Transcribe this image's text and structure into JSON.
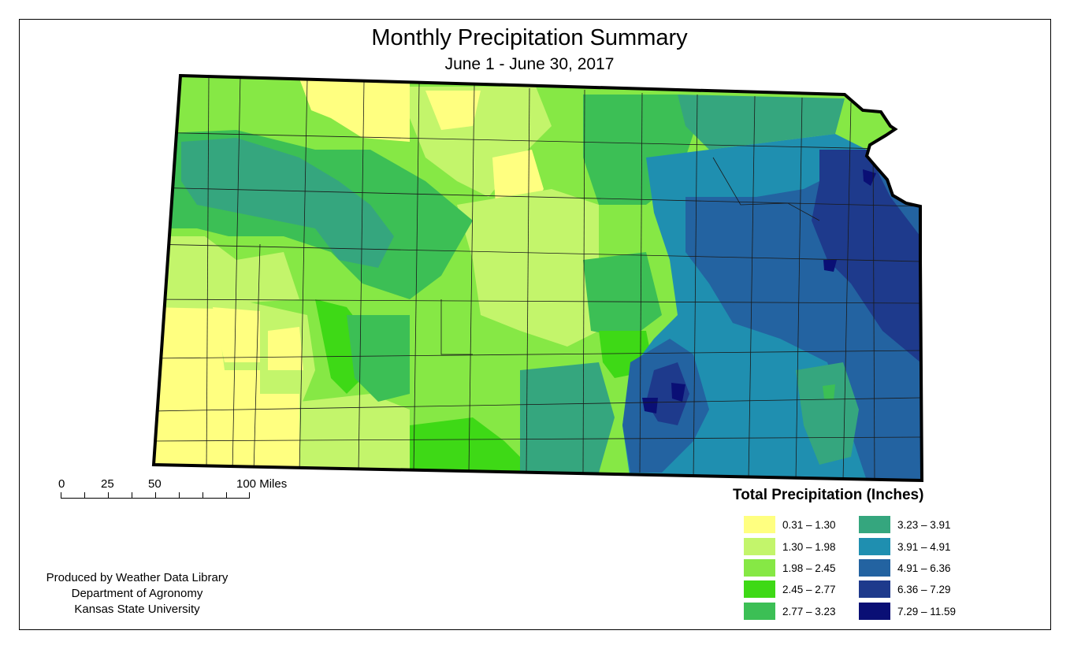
{
  "title": "Monthly Precipitation Summary",
  "subtitle": "June 1 - June 30, 2017",
  "scale_bar": {
    "labels": [
      "0",
      "25",
      "50",
      "100 Miles"
    ]
  },
  "credit": {
    "line1": "Produced by Weather Data Library",
    "line2": "Department of Agronomy",
    "line3": "Kansas State University"
  },
  "legend": {
    "title": "Total Precipitation (Inches)",
    "classes": [
      {
        "label": "0.31 – 1.30",
        "color": "#ffff80"
      },
      {
        "label": "1.30 – 1.98",
        "color": "#c3f56b"
      },
      {
        "label": "1.98 – 2.45",
        "color": "#86e845"
      },
      {
        "label": "2.45 – 2.77",
        "color": "#3ed916"
      },
      {
        "label": "2.77 – 3.23",
        "color": "#3cbf55"
      },
      {
        "label": "3.23 – 3.91",
        "color": "#35a67e"
      },
      {
        "label": "3.91 – 4.91",
        "color": "#1f8fb0"
      },
      {
        "label": "4.91 – 6.36",
        "color": "#2363a1"
      },
      {
        "label": "6.36 – 7.29",
        "color": "#1e3a8c"
      },
      {
        "label": "7.29 – 11.59",
        "color": "#0a0f75"
      }
    ]
  }
}
